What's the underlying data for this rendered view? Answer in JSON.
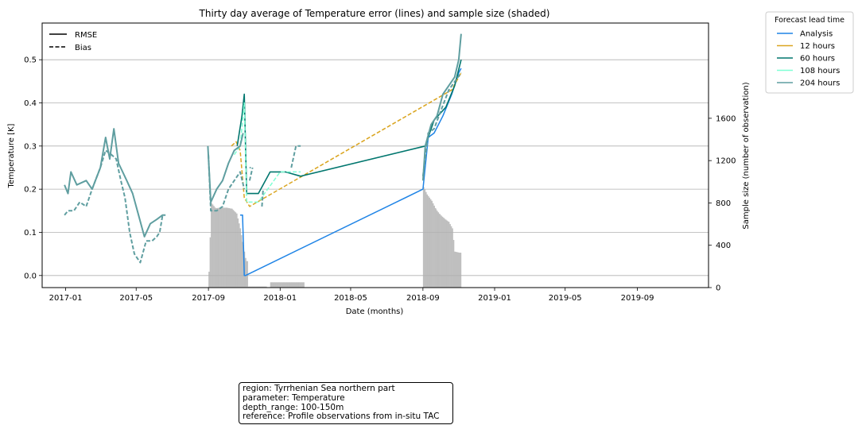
{
  "chart_data": {
    "type": "line",
    "title": "Thirty day average of Temperature error (lines) and sample size (shaded)",
    "xlabel": "Date (months)",
    "ylabel": "Temperature [K]",
    "ylabel_right": "Sample size (number of observation)",
    "ylim": [
      -0.028,
      0.585
    ],
    "ylim_right": [
      0,
      2500
    ],
    "xlim": [
      "2016-11-22",
      "2019-12-31"
    ],
    "x_ticks": [
      "2017-01",
      "2017-05",
      "2017-09",
      "2018-01",
      "2018-05",
      "2018-09",
      "2019-01",
      "2019-05",
      "2019-09"
    ],
    "y_ticks": [
      "0.0",
      "0.1",
      "0.2",
      "0.3",
      "0.4",
      "0.5"
    ],
    "y_ticks_right": [
      "0",
      "400",
      "800",
      "1200",
      "1600"
    ],
    "grid": "horizontal",
    "style_legend": {
      "entries": [
        {
          "label": "RMSE",
          "dash": "solid"
        },
        {
          "label": "Bias",
          "dash": "dashed"
        }
      ],
      "placement": "top-left"
    },
    "lead_legend": {
      "title": "Forecast lead time",
      "entries": [
        {
          "label": "Analysis",
          "color": "#1f84e6"
        },
        {
          "label": "12 hours",
          "color": "#daa520"
        },
        {
          "label": "60 hours",
          "color": "#00766e"
        },
        {
          "label": "108 hours",
          "color": "#7fffd4"
        },
        {
          "label": "204 hours",
          "color": "#5f9ea0"
        }
      ],
      "placement": "outside-right"
    },
    "sample_size": [
      {
        "x": "2017-09-01",
        "y": 150
      },
      {
        "x": "2017-09-05",
        "y": 800
      },
      {
        "x": "2017-09-12",
        "y": 750
      },
      {
        "x": "2017-09-20",
        "y": 755
      },
      {
        "x": "2017-10-01",
        "y": 755
      },
      {
        "x": "2017-10-10",
        "y": 745
      },
      {
        "x": "2017-10-18",
        "y": 700
      },
      {
        "x": "2017-10-24",
        "y": 560
      },
      {
        "x": "2017-10-29",
        "y": 400
      },
      {
        "x": "2017-11-03",
        "y": 250
      },
      {
        "x": "2017-11-06",
        "y": 0
      },
      {
        "x": "2017-11-07",
        "y": 10
      },
      {
        "x": "2017-12-08",
        "y": 0
      },
      {
        "x": "2017-12-15",
        "y": 50
      },
      {
        "x": "2018-02-10",
        "y": 0
      },
      {
        "x": "2018-09-01",
        "y": 950
      },
      {
        "x": "2018-09-07",
        "y": 880
      },
      {
        "x": "2018-09-15",
        "y": 820
      },
      {
        "x": "2018-09-22",
        "y": 740
      },
      {
        "x": "2018-09-29",
        "y": 690
      },
      {
        "x": "2018-10-07",
        "y": 650
      },
      {
        "x": "2018-10-14",
        "y": 620
      },
      {
        "x": "2018-10-20",
        "y": 560
      },
      {
        "x": "2018-10-24",
        "y": 340
      },
      {
        "x": "2018-11-01",
        "y": 330
      },
      {
        "x": "2018-11-04",
        "y": 0
      }
    ],
    "series": [
      {
        "name": "Analysis",
        "metric": "RMSE",
        "color": "#1f84e6",
        "dash": "solid",
        "width": 1.5,
        "values": [
          {
            "x": "2017-10-25",
            "y": 0.14
          },
          {
            "x": "2017-10-29",
            "y": 0.14
          },
          {
            "x": "2017-10-31",
            "y": 0.05
          },
          {
            "x": "2017-11-01",
            "y": 0.0
          },
          {
            "x": "2017-11-03",
            "y": 0.0
          },
          {
            "x": "2018-09-01",
            "y": 0.2
          },
          {
            "x": "2018-09-10",
            "y": 0.32
          },
          {
            "x": "2018-09-20",
            "y": 0.33
          },
          {
            "x": "2018-10-05",
            "y": 0.37
          },
          {
            "x": "2018-10-20",
            "y": 0.42
          },
          {
            "x": "2018-11-01",
            "y": 0.47
          },
          {
            "x": "2018-11-05",
            "y": 0.48
          }
        ]
      },
      {
        "name": "12 hours",
        "metric": "Bias",
        "color": "#daa520",
        "dash": "dashed",
        "width": 1.5,
        "values": [
          {
            "x": "2017-10-10",
            "y": 0.3
          },
          {
            "x": "2017-10-18",
            "y": 0.31
          },
          {
            "x": "2017-10-25",
            "y": 0.29
          },
          {
            "x": "2017-11-01",
            "y": 0.18
          },
          {
            "x": "2017-11-10",
            "y": 0.16
          },
          {
            "x": "2018-10-20",
            "y": 0.43
          },
          {
            "x": "2018-11-05",
            "y": 0.47
          }
        ]
      },
      {
        "name": "60 hours",
        "metric": "RMSE",
        "color": "#00766e",
        "dash": "solid",
        "width": 1.6,
        "values": [
          {
            "x": "2017-10-20",
            "y": 0.3
          },
          {
            "x": "2017-10-28",
            "y": 0.37
          },
          {
            "x": "2017-11-01",
            "y": 0.42
          },
          {
            "x": "2017-11-05",
            "y": 0.19
          },
          {
            "x": "2017-11-25",
            "y": 0.19
          },
          {
            "x": "2017-12-15",
            "y": 0.24
          },
          {
            "x": "2018-01-10",
            "y": 0.24
          },
          {
            "x": "2018-02-05",
            "y": 0.23
          },
          {
            "x": "2018-09-05",
            "y": 0.3
          },
          {
            "x": "2018-09-20",
            "y": 0.36
          },
          {
            "x": "2018-10-10",
            "y": 0.39
          },
          {
            "x": "2018-10-25",
            "y": 0.44
          },
          {
            "x": "2018-11-05",
            "y": 0.5
          }
        ]
      },
      {
        "name": "108 hours",
        "metric": "Bias",
        "color": "#7fffd4",
        "dash": "dashed",
        "width": 1.5,
        "values": [
          {
            "x": "2017-10-15",
            "y": 0.28
          },
          {
            "x": "2017-10-25",
            "y": 0.3
          },
          {
            "x": "2017-11-01",
            "y": 0.4
          },
          {
            "x": "2017-11-05",
            "y": 0.17
          },
          {
            "x": "2017-11-25",
            "y": 0.17
          },
          {
            "x": "2018-01-01",
            "y": 0.24
          },
          {
            "x": "2018-02-05",
            "y": 0.24
          }
        ]
      },
      {
        "name": "204 hours",
        "metric": "RMSE",
        "color": "#5f9ea0",
        "dash": "solid",
        "width": 2,
        "values": [
          {
            "x": "2016-12-30",
            "y": 0.21
          },
          {
            "x": "2017-01-05",
            "y": 0.19
          },
          {
            "x": "2017-01-10",
            "y": 0.24
          },
          {
            "x": "2017-01-20",
            "y": 0.21
          },
          {
            "x": "2017-02-05",
            "y": 0.22
          },
          {
            "x": "2017-02-15",
            "y": 0.2
          },
          {
            "x": "2017-03-01",
            "y": 0.25
          },
          {
            "x": "2017-03-10",
            "y": 0.32
          },
          {
            "x": "2017-03-17",
            "y": 0.27
          },
          {
            "x": "2017-03-24",
            "y": 0.34
          },
          {
            "x": "2017-04-01",
            "y": 0.26
          },
          {
            "x": "2017-04-15",
            "y": 0.22
          },
          {
            "x": "2017-04-25",
            "y": 0.19
          },
          {
            "x": "2017-05-05",
            "y": 0.14
          },
          {
            "x": "2017-05-15",
            "y": 0.09
          },
          {
            "x": "2017-05-25",
            "y": 0.12
          },
          {
            "x": "2017-06-05",
            "y": 0.13
          },
          {
            "x": "2017-06-15",
            "y": 0.14
          },
          {
            "x": "2017-06-20",
            "y": 0.14
          },
          null,
          {
            "x": "2017-08-31",
            "y": 0.3
          },
          {
            "x": "2017-09-05",
            "y": 0.17
          },
          {
            "x": "2017-09-15",
            "y": 0.2
          },
          {
            "x": "2017-09-25",
            "y": 0.22
          },
          {
            "x": "2017-10-05",
            "y": 0.26
          },
          {
            "x": "2017-10-15",
            "y": 0.29
          },
          {
            "x": "2017-10-25",
            "y": 0.3
          },
          {
            "x": "2017-10-30",
            "y": 0.33
          },
          null,
          {
            "x": "2017-11-10",
            "y": 0.25
          },
          {
            "x": "2017-11-12",
            "y": 0.25
          },
          null,
          {
            "x": "2018-09-01",
            "y": 0.22
          },
          {
            "x": "2018-09-05",
            "y": 0.3
          },
          {
            "x": "2018-09-15",
            "y": 0.35
          },
          {
            "x": "2018-09-25",
            "y": 0.37
          },
          {
            "x": "2018-10-05",
            "y": 0.42
          },
          {
            "x": "2018-10-15",
            "y": 0.44
          },
          {
            "x": "2018-10-25",
            "y": 0.46
          },
          {
            "x": "2018-11-01",
            "y": 0.5
          },
          {
            "x": "2018-11-05",
            "y": 0.56
          }
        ]
      },
      {
        "name": "204 hours",
        "metric": "Bias",
        "color": "#5f9ea0",
        "dash": "dashed",
        "width": 2,
        "values": [
          {
            "x": "2016-12-30",
            "y": 0.14
          },
          {
            "x": "2017-01-05",
            "y": 0.15
          },
          {
            "x": "2017-01-15",
            "y": 0.15
          },
          {
            "x": "2017-01-25",
            "y": 0.17
          },
          {
            "x": "2017-02-05",
            "y": 0.16
          },
          {
            "x": "2017-02-15",
            "y": 0.2
          },
          {
            "x": "2017-03-01",
            "y": 0.25
          },
          {
            "x": "2017-03-10",
            "y": 0.29
          },
          {
            "x": "2017-03-20",
            "y": 0.28
          },
          {
            "x": "2017-03-28",
            "y": 0.27
          },
          {
            "x": "2017-04-05",
            "y": 0.22
          },
          {
            "x": "2017-04-12",
            "y": 0.18
          },
          {
            "x": "2017-04-20",
            "y": 0.1
          },
          {
            "x": "2017-04-28",
            "y": 0.05
          },
          {
            "x": "2017-05-08",
            "y": 0.03
          },
          {
            "x": "2017-05-18",
            "y": 0.08
          },
          {
            "x": "2017-05-28",
            "y": 0.08
          },
          {
            "x": "2017-06-05",
            "y": 0.09
          },
          {
            "x": "2017-06-10",
            "y": 0.1
          },
          {
            "x": "2017-06-15",
            "y": 0.14
          },
          null,
          {
            "x": "2017-09-01",
            "y": 0.28
          },
          {
            "x": "2017-09-05",
            "y": 0.15
          },
          {
            "x": "2017-09-15",
            "y": 0.15
          },
          {
            "x": "2017-09-25",
            "y": 0.16
          },
          {
            "x": "2017-10-05",
            "y": 0.2
          },
          {
            "x": "2017-10-15",
            "y": 0.22
          },
          {
            "x": "2017-10-25",
            "y": 0.24
          },
          {
            "x": "2017-11-01",
            "y": 0.2
          },
          null,
          {
            "x": "2017-11-10",
            "y": 0.22
          },
          {
            "x": "2017-11-15",
            "y": 0.25
          },
          null,
          {
            "x": "2017-12-01",
            "y": 0.16
          },
          {
            "x": "2017-12-03",
            "y": 0.2
          },
          null,
          {
            "x": "2018-01-20",
            "y": 0.25
          },
          {
            "x": "2018-01-28",
            "y": 0.3
          },
          {
            "x": "2018-02-05",
            "y": 0.3
          },
          null,
          {
            "x": "2018-09-01",
            "y": 0.23
          },
          {
            "x": "2018-09-10",
            "y": 0.33
          },
          {
            "x": "2018-09-20",
            "y": 0.34
          },
          {
            "x": "2018-10-01",
            "y": 0.38
          },
          {
            "x": "2018-10-15",
            "y": 0.43
          },
          {
            "x": "2018-11-05",
            "y": 0.47
          }
        ]
      }
    ]
  },
  "info_box": {
    "lines": [
      "region: Tyrrhenian Sea northern part",
      "parameter: Temperature",
      "depth_range: 100-150m",
      "reference: Profile observations from in-situ TAC"
    ]
  }
}
